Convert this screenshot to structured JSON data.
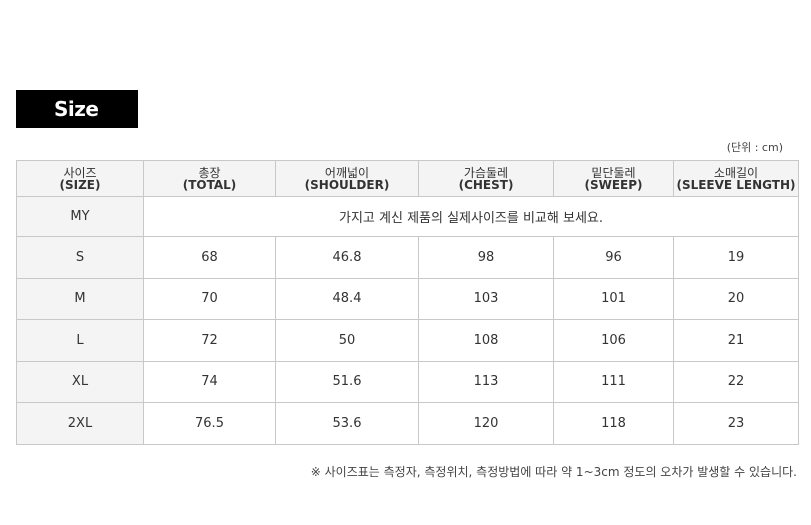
{
  "title": "Size",
  "unit": "(단위 : cm)",
  "headers": [
    {
      "ko": "사이즈",
      "en": "(SIZE)"
    },
    {
      "ko": "총장",
      "en": "(TOTAL)"
    },
    {
      "ko": "어깨넓이",
      "en": "(SHOULDER)"
    },
    {
      "ko": "가슴둘레",
      "en": "(CHEST)"
    },
    {
      "ko": "밑단둘레",
      "en": "(SWEEP)"
    },
    {
      "ko": "소매길이",
      "en": "(SLEEVE LENGTH)"
    }
  ],
  "my": {
    "label": "MY",
    "text": "가지고 계신 제품의 실제사이즈를 비교해 보세요."
  },
  "rows": [
    [
      "S",
      "68",
      "46.8",
      "98",
      "96",
      "19"
    ],
    [
      "M",
      "70",
      "48.4",
      "103",
      "101",
      "20"
    ],
    [
      "L",
      "72",
      "50",
      "108",
      "106",
      "21"
    ],
    [
      "XL",
      "74",
      "51.6",
      "113",
      "111",
      "22"
    ],
    [
      "2XL",
      "76.5",
      "53.6",
      "120",
      "118",
      "23"
    ]
  ],
  "note": "※ 사이즈표는 측정자, 측정위치, 측정방법에 따라 약 1~3cm 정도의 오차가 발생할 수 있습니다."
}
